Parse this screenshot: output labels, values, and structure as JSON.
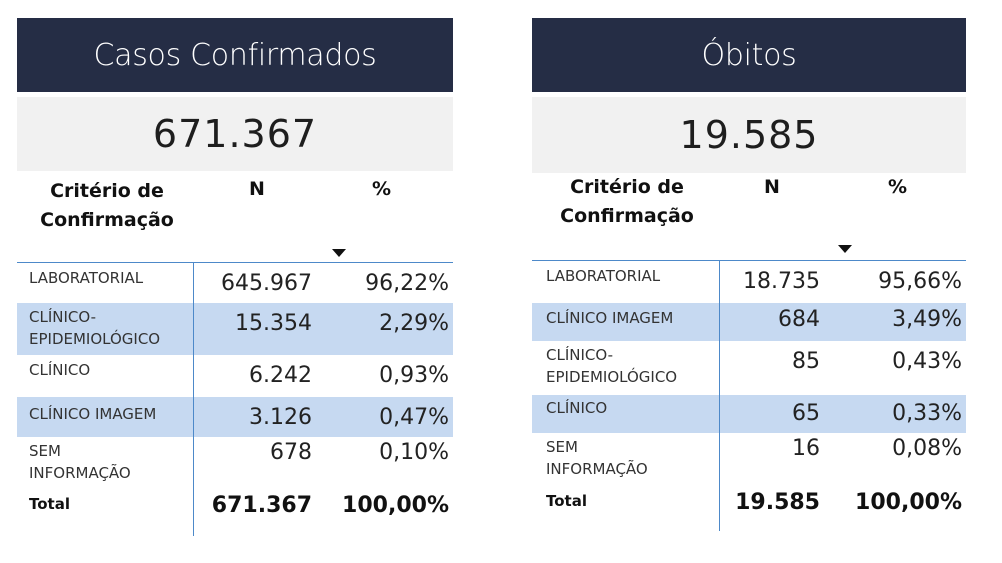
{
  "chart_data": [
    {
      "type": "table",
      "title": "Casos Confirmados",
      "total_value": "671.367",
      "columns": [
        "Critério de\nConfirmação",
        "N",
        "%"
      ],
      "rows": [
        {
          "label": "LABORATORIAL",
          "n": "645.967",
          "pct": "96,22%"
        },
        {
          "label": "CLÍNICO-\nEPIDEMIOLÓGICO",
          "n": "15.354",
          "pct": "2,29%"
        },
        {
          "label": "CLÍNICO",
          "n": "6.242",
          "pct": "0,93%"
        },
        {
          "label": "CLÍNICO IMAGEM",
          "n": "3.126",
          "pct": "0,47%"
        },
        {
          "label": "SEM\nINFORMAÇÃO",
          "n": "678",
          "pct": "0,10%"
        }
      ],
      "total_row": {
        "label": "Total",
        "n": "671.367",
        "pct": "100,00%"
      }
    },
    {
      "type": "table",
      "title": "Óbitos",
      "total_value": "19.585",
      "columns": [
        "Critério de\nConfirmação",
        "N",
        "%"
      ],
      "rows": [
        {
          "label": "LABORATORIAL",
          "n": "18.735",
          "pct": "95,66%"
        },
        {
          "label": "CLÍNICO IMAGEM",
          "n": "684",
          "pct": "3,49%"
        },
        {
          "label": "CLÍNICO-\nEPIDEMIOLÓGICO",
          "n": "85",
          "pct": "0,43%"
        },
        {
          "label": "CLÍNICO",
          "n": "65",
          "pct": "0,33%"
        },
        {
          "label": "SEM\nINFORMAÇÃO",
          "n": "16",
          "pct": "0,08%"
        }
      ],
      "total_row": {
        "label": "Total",
        "n": "19.585",
        "pct": "100,00%"
      }
    }
  ],
  "colors": {
    "header_bg": "#252d45",
    "kpi_bg": "#f1f1f1",
    "row_highlight": "#c6d9f1",
    "divider": "#4d89c9"
  }
}
